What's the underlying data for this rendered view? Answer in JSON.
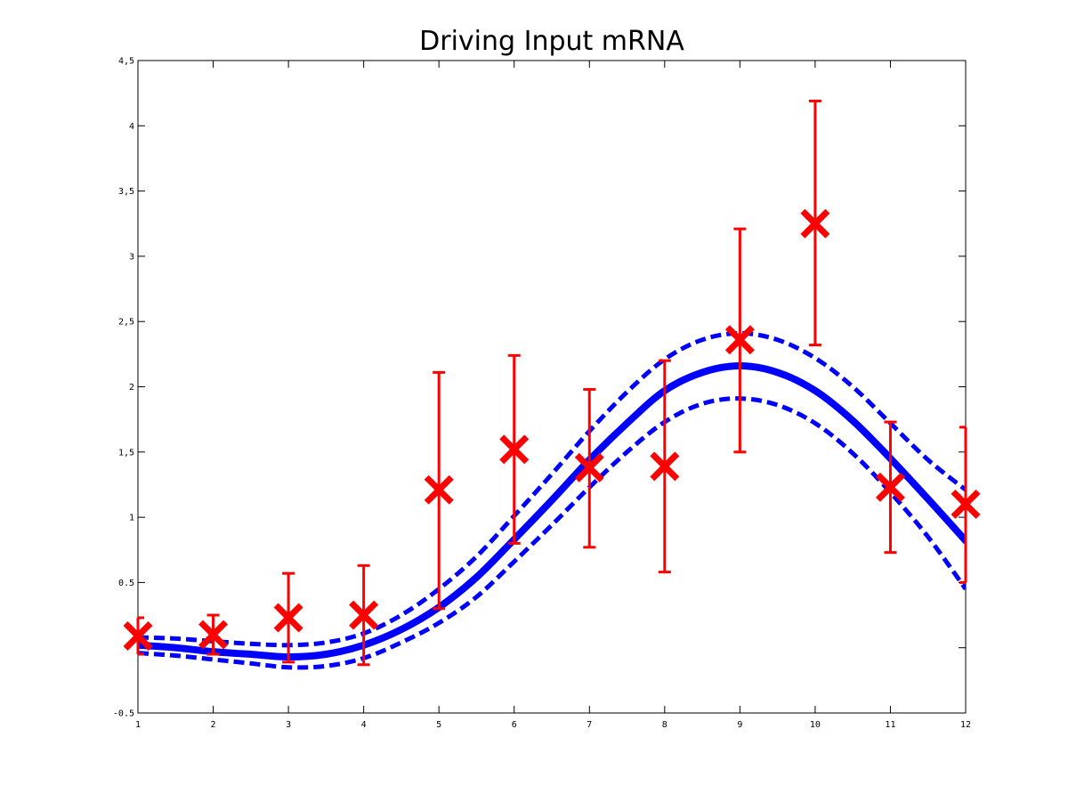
{
  "chart_data": {
    "type": "line",
    "title": "Driving Input mRNA",
    "xlabel": "",
    "ylabel": "",
    "xlim": [
      1,
      12
    ],
    "ylim": [
      -0.5,
      4.5
    ],
    "x_ticks": [
      1,
      2,
      3,
      4,
      5,
      6,
      7,
      8,
      9,
      10,
      11,
      12
    ],
    "x_tick_labels": [
      "1",
      "2",
      "3",
      "4",
      "5",
      "6",
      "7",
      "8",
      "9",
      "10",
      "11",
      "12"
    ],
    "y_ticks": [
      -0.5,
      0,
      0.5,
      1,
      1.5,
      2,
      2.5,
      3,
      3.5,
      4,
      4.5
    ],
    "y_tick_labels": [
      "-0.5",
      "",
      "0.5",
      "1",
      "1,5",
      "2",
      "2,5",
      "3",
      "3,5",
      "4",
      "4,5"
    ],
    "grid": false,
    "legend": "none",
    "colors": {
      "fit": "#0000ff",
      "observations": "#ff0000",
      "axes": "#000000"
    },
    "mean_curve": {
      "x": [
        1,
        1.5,
        2,
        2.5,
        3,
        3.5,
        4,
        4.5,
        5,
        5.5,
        6,
        6.5,
        7,
        7.5,
        8,
        8.5,
        9,
        9.5,
        10,
        10.5,
        11,
        11.5,
        12
      ],
      "y": [
        0.02,
        0.0,
        -0.03,
        -0.05,
        -0.07,
        -0.05,
        0.02,
        0.14,
        0.31,
        0.54,
        0.83,
        1.13,
        1.44,
        1.72,
        1.97,
        2.11,
        2.16,
        2.11,
        1.97,
        1.74,
        1.45,
        1.14,
        0.82
      ]
    },
    "upper_band": {
      "x": [
        1,
        1.5,
        2,
        2.5,
        3,
        3.5,
        4,
        4.5,
        5,
        5.5,
        6,
        6.5,
        7,
        7.5,
        8,
        8.5,
        9,
        9.5,
        10,
        10.5,
        11,
        11.5,
        12
      ],
      "y": [
        0.08,
        0.07,
        0.05,
        0.03,
        0.02,
        0.04,
        0.11,
        0.25,
        0.45,
        0.7,
        1.01,
        1.33,
        1.66,
        1.96,
        2.21,
        2.36,
        2.41,
        2.36,
        2.22,
        2.0,
        1.72,
        1.44,
        1.21
      ]
    },
    "lower_band": {
      "x": [
        1,
        1.5,
        2,
        2.5,
        3,
        3.5,
        4,
        4.5,
        5,
        5.5,
        6,
        6.5,
        7,
        7.5,
        8,
        8.5,
        9,
        9.5,
        10,
        10.5,
        11,
        11.5,
        12
      ],
      "y": [
        -0.04,
        -0.06,
        -0.09,
        -0.12,
        -0.15,
        -0.14,
        -0.08,
        0.04,
        0.19,
        0.39,
        0.66,
        0.94,
        1.23,
        1.5,
        1.73,
        1.87,
        1.91,
        1.86,
        1.72,
        1.49,
        1.19,
        0.85,
        0.45
      ]
    },
    "observations": {
      "x": [
        1,
        2,
        3,
        4,
        5,
        6,
        7,
        8,
        9,
        10,
        11,
        12
      ],
      "y": [
        0.09,
        0.1,
        0.23,
        0.25,
        1.21,
        1.52,
        1.38,
        1.39,
        2.36,
        3.25,
        1.23,
        1.1
      ],
      "err_low": [
        -0.05,
        -0.05,
        -0.11,
        -0.13,
        0.3,
        0.8,
        0.77,
        0.58,
        1.5,
        2.32,
        0.73,
        0.5
      ],
      "err_high": [
        0.23,
        0.25,
        0.57,
        0.63,
        2.11,
        2.24,
        1.98,
        2.2,
        3.21,
        4.19,
        1.73,
        1.69
      ]
    }
  }
}
